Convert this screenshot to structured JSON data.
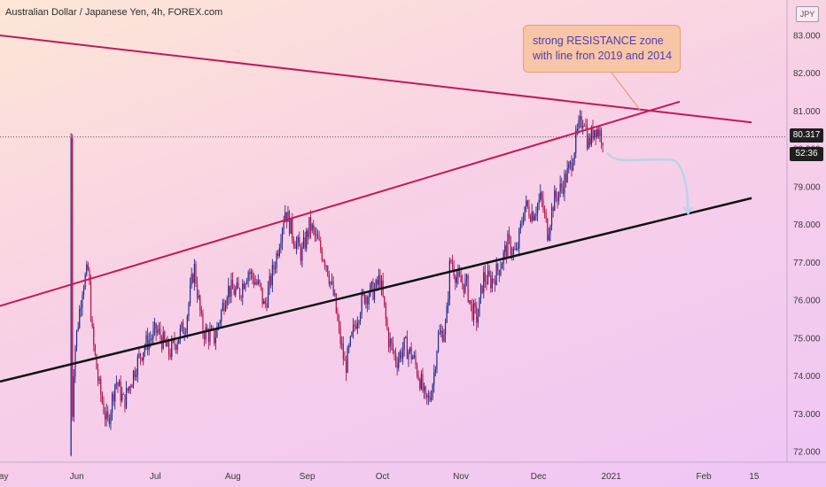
{
  "header": {
    "title": "Australian Dollar / Japanese Yen, 4h, FOREX.com"
  },
  "axis": {
    "unit": "JPY"
  },
  "price_badge": {
    "last": "80.317",
    "countdown": "52:36"
  },
  "annotation": {
    "line1": "strong RESISTANCE zone",
    "line2": "with line fron 2019 and 2014"
  },
  "colors": {
    "resistance_line": "#c2185b",
    "support_line": "#111111",
    "candle_up": "#1f2a8c",
    "candle_down": "#b3124a",
    "forecast_arrow": "#b8d4e6"
  },
  "chart_data": {
    "type": "candlestick",
    "ylim": [
      71.8,
      83.5
    ],
    "y_ticks": [
      "72.000",
      "73.000",
      "74.000",
      "75.000",
      "76.000",
      "77.000",
      "78.000",
      "79.000",
      "80.000",
      "81.000",
      "82.000",
      "83.000"
    ],
    "x_ticks": [
      "May",
      "Jun",
      "Jul",
      "Aug",
      "Sep",
      "Oct",
      "Nov",
      "Dec",
      "2021",
      "Feb",
      "15"
    ],
    "grid": false,
    "price_path": [
      [
        0.086,
        71.9
      ],
      [
        0.09,
        74.6
      ],
      [
        0.1,
        76.4
      ],
      [
        0.107,
        76.8
      ],
      [
        0.112,
        75.0
      ],
      [
        0.12,
        73.7
      ],
      [
        0.13,
        72.7
      ],
      [
        0.14,
        73.9
      ],
      [
        0.15,
        73.3
      ],
      [
        0.165,
        74.3
      ],
      [
        0.175,
        74.8
      ],
      [
        0.19,
        75.2
      ],
      [
        0.205,
        74.6
      ],
      [
        0.225,
        75.4
      ],
      [
        0.235,
        76.9
      ],
      [
        0.245,
        75.2
      ],
      [
        0.26,
        75.0
      ],
      [
        0.275,
        76.3
      ],
      [
        0.29,
        76.2
      ],
      [
        0.3,
        76.8
      ],
      [
        0.315,
        76.3
      ],
      [
        0.32,
        75.8
      ],
      [
        0.335,
        77.2
      ],
      [
        0.345,
        78.4
      ],
      [
        0.355,
        77.7
      ],
      [
        0.365,
        77.2
      ],
      [
        0.375,
        78.0
      ],
      [
        0.385,
        77.5
      ],
      [
        0.395,
        77.0
      ],
      [
        0.405,
        76.0
      ],
      [
        0.41,
        75.2
      ],
      [
        0.418,
        74.2
      ],
      [
        0.43,
        75.4
      ],
      [
        0.44,
        76.1
      ],
      [
        0.455,
        76.3
      ],
      [
        0.46,
        76.6
      ],
      [
        0.47,
        75.0
      ],
      [
        0.48,
        74.4
      ],
      [
        0.49,
        74.8
      ],
      [
        0.5,
        74.5
      ],
      [
        0.51,
        73.8
      ],
      [
        0.515,
        73.3
      ],
      [
        0.52,
        73.4
      ],
      [
        0.525,
        74.0
      ],
      [
        0.53,
        75.0
      ],
      [
        0.54,
        75.3
      ],
      [
        0.545,
        77.1
      ],
      [
        0.555,
        76.5
      ],
      [
        0.565,
        76.4
      ],
      [
        0.57,
        75.8
      ],
      [
        0.578,
        75.5
      ],
      [
        0.585,
        76.6
      ],
      [
        0.595,
        76.5
      ],
      [
        0.605,
        76.9
      ],
      [
        0.615,
        77.5
      ],
      [
        0.625,
        77.2
      ],
      [
        0.635,
        78.5
      ],
      [
        0.645,
        78.3
      ],
      [
        0.655,
        78.7
      ],
      [
        0.663,
        77.8
      ],
      [
        0.67,
        78.6
      ],
      [
        0.68,
        79.0
      ],
      [
        0.69,
        79.5
      ],
      [
        0.7,
        80.5
      ],
      [
        0.707,
        80.9
      ],
      [
        0.712,
        80.1
      ],
      [
        0.72,
        80.6
      ],
      [
        0.727,
        80.4
      ],
      [
        0.731,
        80.3
      ]
    ],
    "resistance_trendline": {
      "from": [
        0.0,
        83.0
      ],
      "to": [
        0.91,
        80.7
      ]
    },
    "rising_trendline": {
      "from": [
        0.0,
        75.85
      ],
      "to": [
        0.823,
        81.25
      ]
    },
    "support_trendline": {
      "from": [
        0.0,
        73.85
      ],
      "to": [
        0.91,
        78.7
      ]
    },
    "last_price_line": 80.317,
    "forecast_arrow": {
      "from": [
        0.735,
        79.9
      ],
      "to": [
        0.833,
        78.3
      ]
    }
  }
}
